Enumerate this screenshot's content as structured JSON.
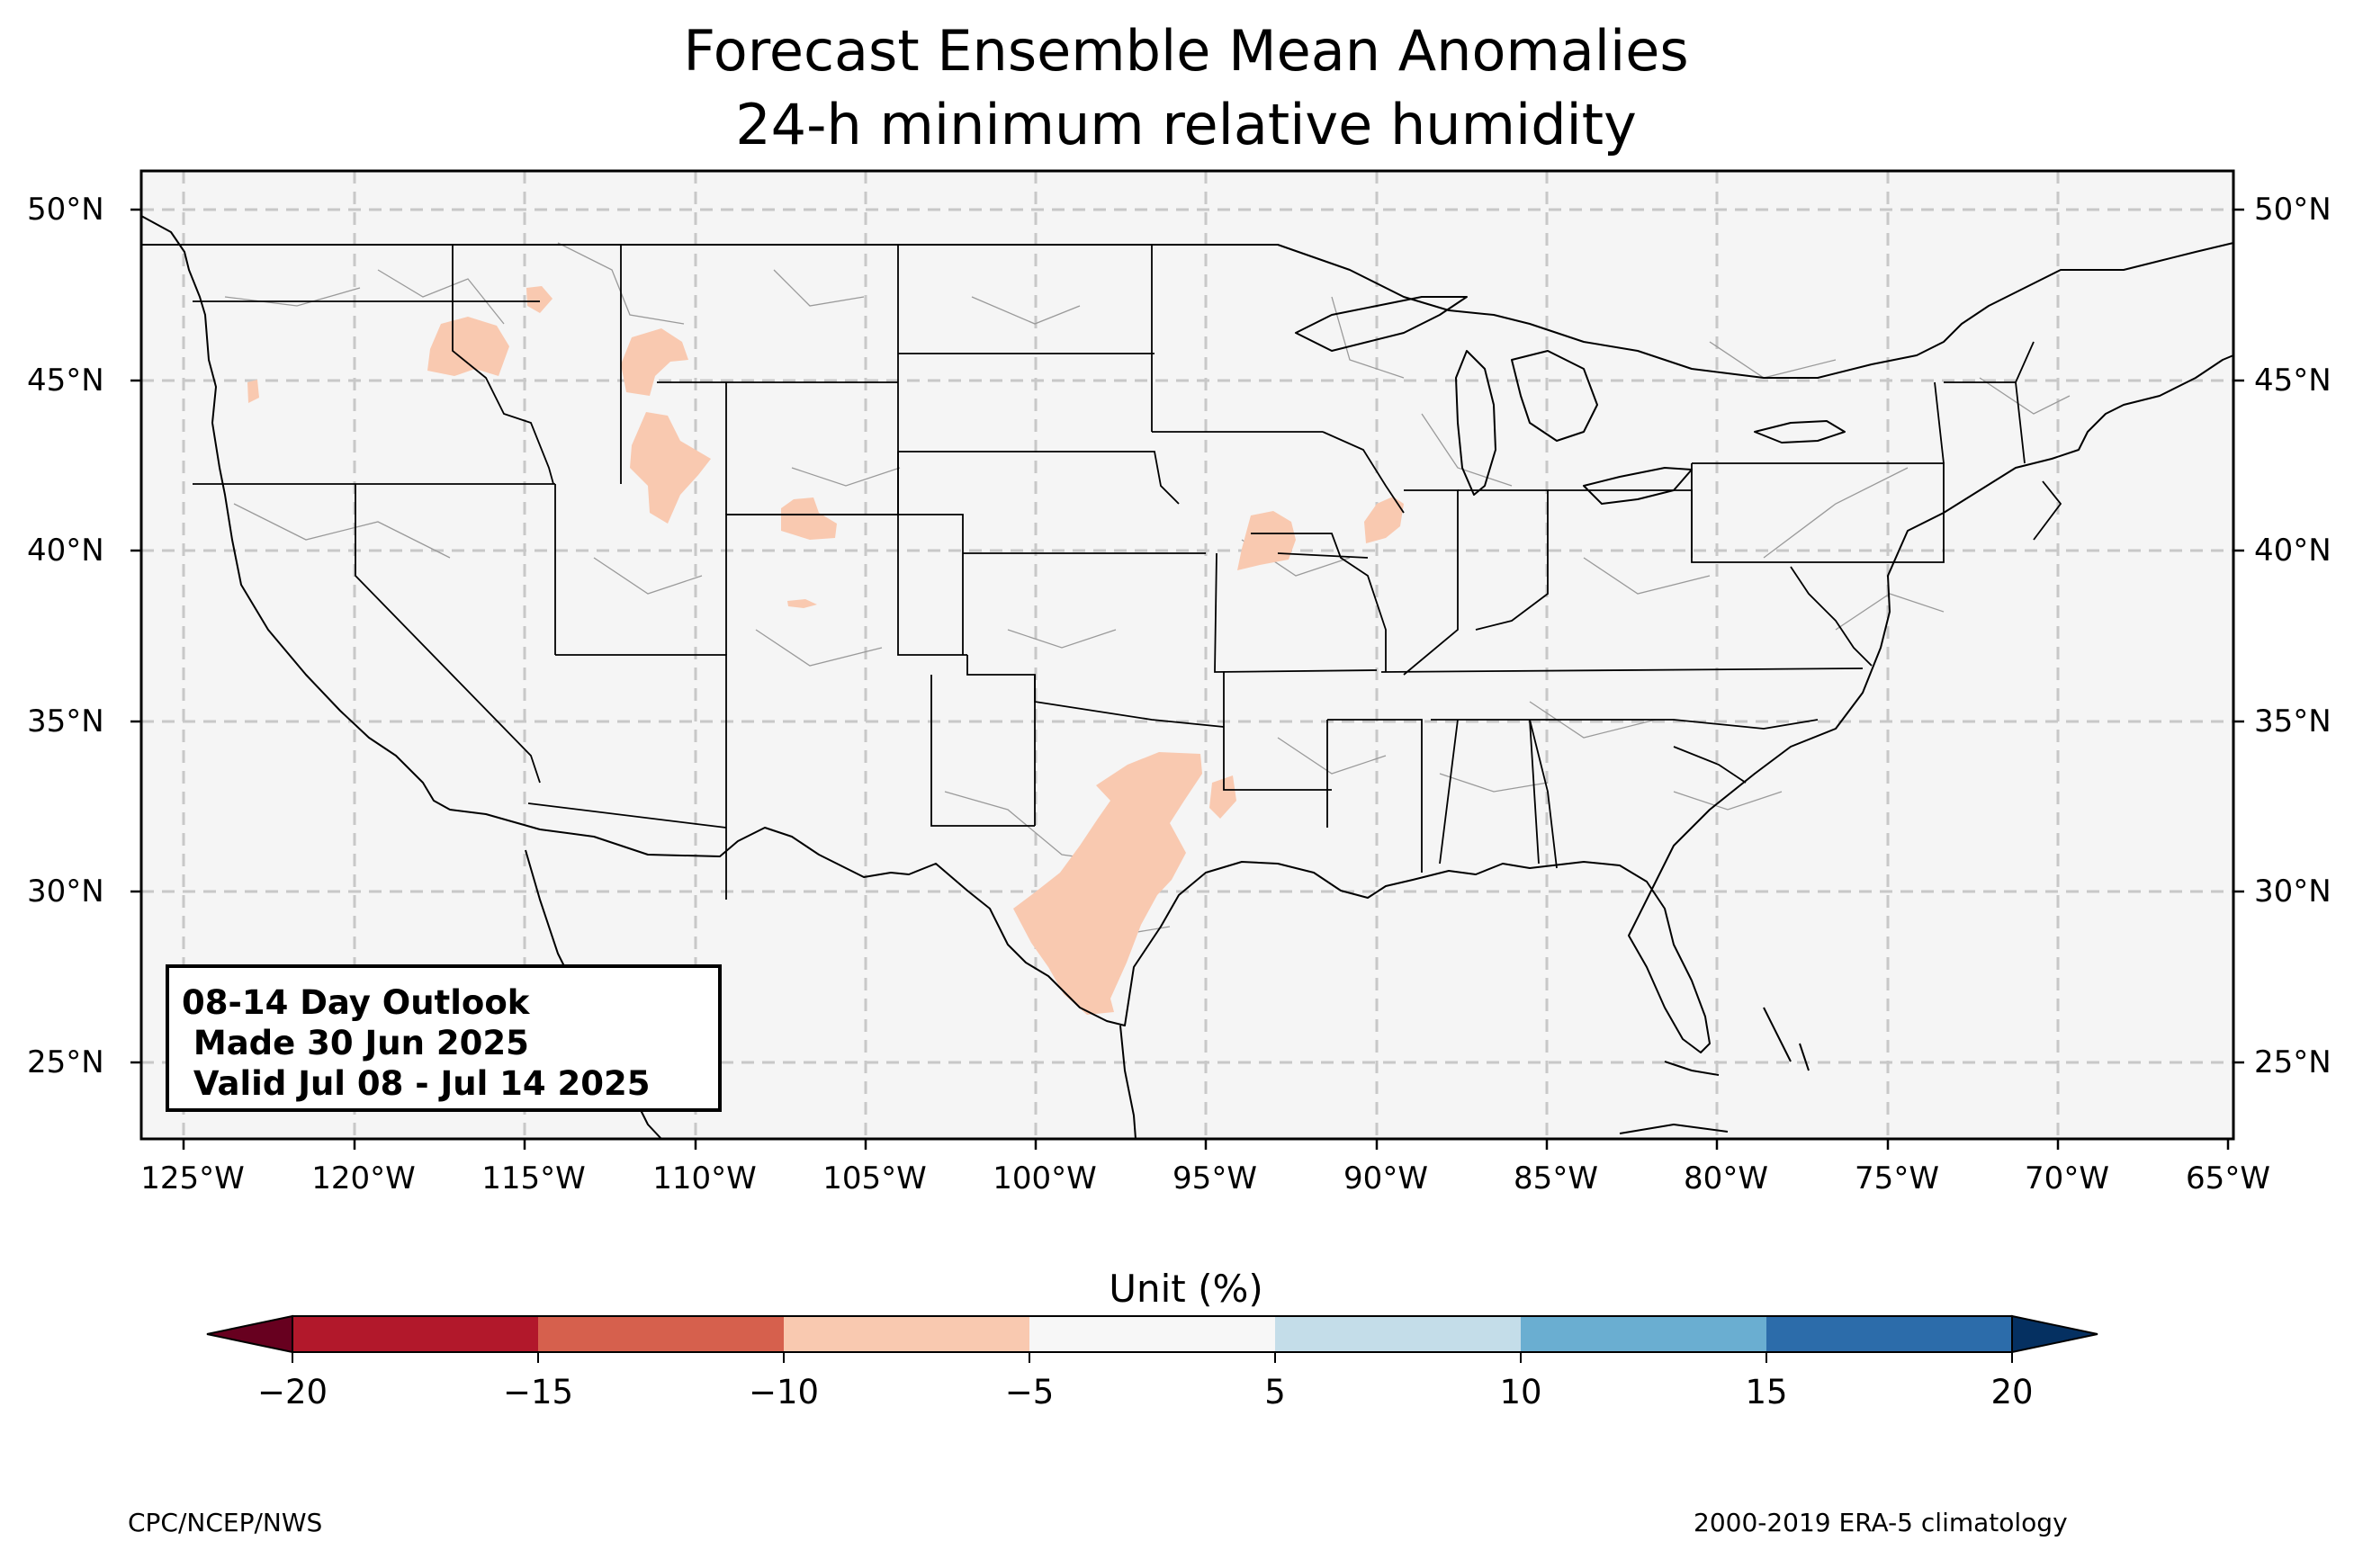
{
  "title": {
    "line1": "Forecast Ensemble Mean Anomalies",
    "line2": "24-h minimum relative humidity"
  },
  "map": {
    "region": "Contiguous United States",
    "background_color": "#f5f5f5",
    "lat_ticks": [
      "25°N",
      "30°N",
      "35°N",
      "40°N",
      "45°N",
      "50°N"
    ],
    "lon_ticks": [
      "125°W",
      "120°W",
      "115°W",
      "110°W",
      "105°W",
      "100°W",
      "95°W",
      "90°W",
      "85°W",
      "80°W",
      "75°W",
      "70°W",
      "65°W"
    ],
    "gridlines": "dashed",
    "anomaly_areas": [
      {
        "name": "Idaho-Oregon border",
        "category": "-10 to -5"
      },
      {
        "name": "Western Montana",
        "category": "-10 to -5"
      },
      {
        "name": "Eastern Washington",
        "category": "-10 to -5"
      },
      {
        "name": "Yellowstone / Wyoming",
        "category": "-10 to -5"
      },
      {
        "name": "Western Wyoming",
        "category": "-10 to -5"
      },
      {
        "name": "Northern Colorado",
        "category": "-10 to -5"
      },
      {
        "name": "Southern Colorado",
        "category": "-10 to -5"
      },
      {
        "name": "Northern Missouri",
        "category": "-10 to -5"
      },
      {
        "name": "Western Illinois",
        "category": "-10 to -5"
      },
      {
        "name": "Central and South Texas",
        "category": "-10 to -5"
      },
      {
        "name": "East Texas",
        "category": "-10 to -5"
      }
    ]
  },
  "info_box": {
    "line1": "08-14 Day Outlook",
    "line2": " Made 30 Jun 2025",
    "line3": " Valid Jul 08 - Jul 14 2025"
  },
  "colorbar": {
    "title": "Unit (%)",
    "ticks": [
      "−20",
      "−15",
      "−10",
      "−5",
      "5",
      "10",
      "15",
      "20"
    ],
    "colors": [
      "#67001f",
      "#b2182b",
      "#d6604d",
      "#f4a582",
      "#fddbc7",
      "#f7f7f7",
      "#d1e5f0",
      "#92c5de",
      "#4393c3",
      "#2166ac",
      "#053061"
    ],
    "extend": "both"
  },
  "footer": {
    "left": "CPC/NCEP/NWS",
    "right": "2000-2019 ERA-5 climatology"
  }
}
